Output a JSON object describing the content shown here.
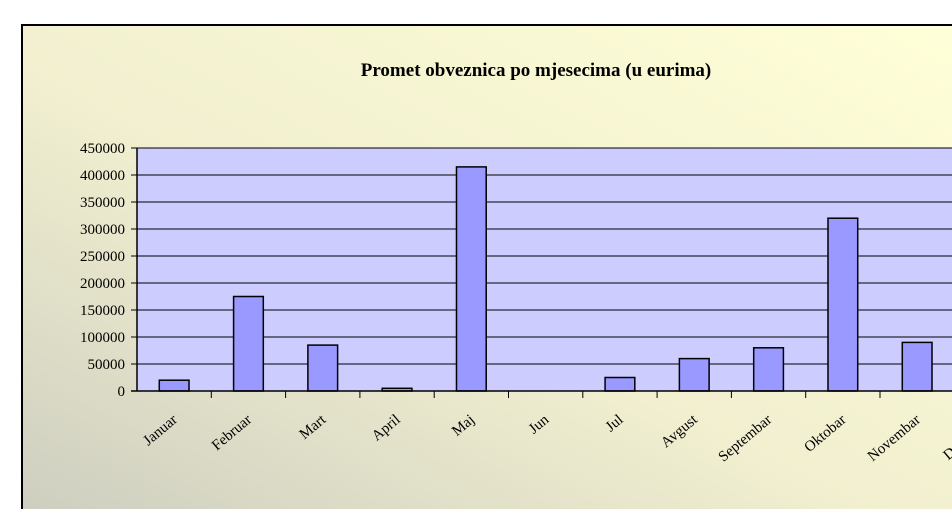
{
  "chart_data": {
    "type": "bar",
    "title": "Promet obveznica po mjesecima (u eurima)",
    "categories": [
      "Januar",
      "Februar",
      "Mart",
      "April",
      "Maj",
      "Jun",
      "Jul",
      "Avgust",
      "Septembar",
      "Oktobar",
      "Novembar",
      "Decembar"
    ],
    "values": [
      20000,
      175000,
      85000,
      5000,
      415000,
      0,
      25000,
      60000,
      80000,
      320000,
      90000,
      null
    ],
    "color": "#9999ff",
    "ylim": [
      0,
      450000
    ],
    "yticks": [
      0,
      50000,
      100000,
      150000,
      200000,
      250000,
      300000,
      350000,
      400000,
      450000
    ],
    "grid": true
  }
}
